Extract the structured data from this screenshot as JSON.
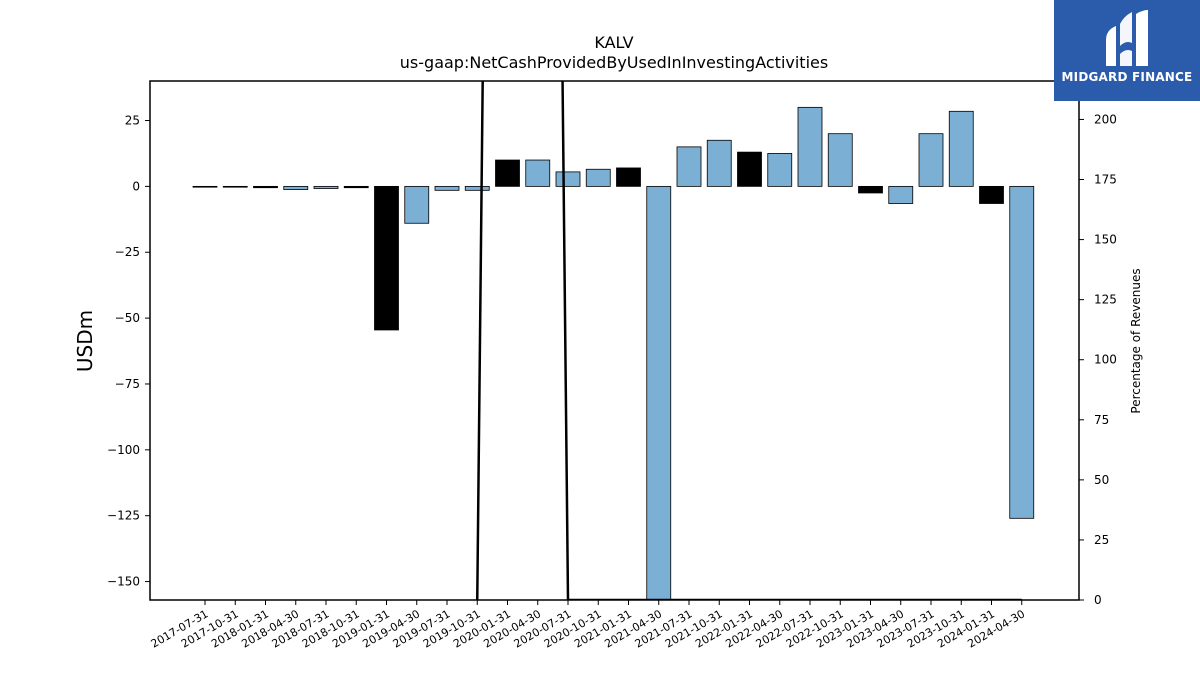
{
  "chart_data": {
    "type": "bar",
    "title": "KALV",
    "subtitle": "us-gaap:NetCashProvidedByUsedInInvestingActivities",
    "ylabel": "USDm",
    "ylabel_right": "Percentage of Revenues",
    "ylim": [
      -157,
      40
    ],
    "ylim_right": [
      0,
      216
    ],
    "yticks": [
      25,
      0,
      -25,
      -50,
      -75,
      -100,
      -125,
      -150
    ],
    "yticks_right": [
      200,
      175,
      150,
      125,
      100,
      75,
      50,
      25,
      0
    ],
    "categories": [
      "2017-07-31",
      "2017-10-31",
      "2018-01-31",
      "2018-04-30",
      "2018-07-31",
      "2018-10-31",
      "2019-01-31",
      "2019-04-30",
      "2019-07-31",
      "2019-10-31",
      "2020-01-31",
      "2020-04-30",
      "2020-07-31",
      "2020-10-31",
      "2021-01-31",
      "2021-04-30",
      "2021-07-31",
      "2021-10-31",
      "2022-01-31",
      "2022-04-30",
      "2022-07-31",
      "2022-10-31",
      "2023-01-31",
      "2023-04-30",
      "2023-07-31",
      "2023-10-31",
      "2024-01-31",
      "2024-04-30"
    ],
    "values": [
      -0.2,
      -0.2,
      -0.5,
      -1.2,
      -0.8,
      -0.5,
      -54.5,
      -14,
      -1.5,
      -1.5,
      10,
      10,
      5.5,
      6.5,
      7,
      -157,
      15,
      17.5,
      13,
      12.5,
      30,
      20,
      -2.5,
      -6.5,
      20,
      28.5,
      -6.5,
      -126
    ],
    "bar_colors": [
      "#000000",
      "#000000",
      "#000000",
      "#7bafd4",
      "#7bafd4",
      "#000000",
      "#000000",
      "#7bafd4",
      "#7bafd4",
      "#7bafd4",
      "#000000",
      "#7bafd4",
      "#7bafd4",
      "#7bafd4",
      "#000000",
      "#7bafd4",
      "#7bafd4",
      "#7bafd4",
      "#000000",
      "#7bafd4",
      "#7bafd4",
      "#7bafd4",
      "#000000",
      "#7bafd4",
      "#7bafd4",
      "#7bafd4",
      "#000000",
      "#7bafd4"
    ],
    "line_series": [
      {
        "values": [
          null,
          null,
          null,
          null,
          null,
          null,
          null,
          null,
          null,
          0,
          1200,
          1200,
          0,
          0,
          0,
          0,
          0,
          0,
          0,
          0,
          0,
          0,
          0,
          0,
          0,
          0,
          0,
          0
        ]
      }
    ],
    "colors": {
      "axis": "#000000",
      "line": "#000000"
    }
  },
  "logo": {
    "text": "MIDGARD FINANCE",
    "background": "#2b5bab"
  }
}
